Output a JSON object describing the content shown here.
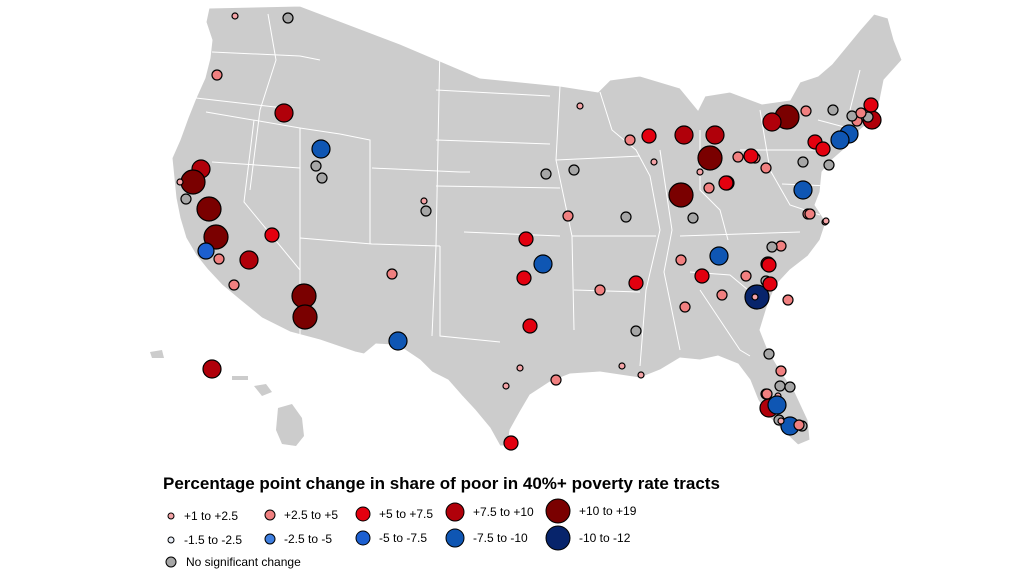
{
  "legend": {
    "title": "Percentage point change in share of poor in 40%+ poverty rate tracts",
    "categories": [
      {
        "key": "inc1",
        "label": "+1 to +2.5",
        "fill": "#f4a3a6"
      },
      {
        "key": "inc2",
        "label": "+2.5 to +5",
        "fill": "#f08080"
      },
      {
        "key": "inc3",
        "label": "+5 to +7.5",
        "fill": "#e3000f"
      },
      {
        "key": "inc4",
        "label": "+7.5 to +10",
        "fill": "#b0000a"
      },
      {
        "key": "inc5",
        "label": "+10 to +19",
        "fill": "#7a0000"
      },
      {
        "key": "dec1",
        "label": "-1.5 to -2.5",
        "fill": "#e8eef8"
      },
      {
        "key": "dec2",
        "label": "-2.5 to -5",
        "fill": "#3f7fe0"
      },
      {
        "key": "dec3",
        "label": "-5 to -7.5",
        "fill": "#1c5fd0"
      },
      {
        "key": "dec4",
        "label": "-7.5 to -10",
        "fill": "#0f56b3"
      },
      {
        "key": "dec5",
        "label": "-10 to -12",
        "fill": "#07246b"
      },
      {
        "key": "nsc",
        "label": "No significant change",
        "fill": "#a6a6a6"
      }
    ]
  },
  "map": {
    "land_color": "#cccccc",
    "border_color": "#ffffff",
    "markers": [
      {
        "cat": "inc1",
        "place": "pt"
      },
      {
        "cat": "nsc"
      },
      {
        "cat": "inc2"
      },
      {
        "cat": "inc4"
      },
      {
        "cat": "dec4"
      },
      {
        "cat": "nsc"
      },
      {
        "cat": "nsc"
      },
      {
        "cat": "inc4"
      },
      {
        "cat": "inc5"
      },
      {
        "cat": "inc1"
      },
      {
        "cat": "nsc"
      },
      {
        "cat": "inc5"
      },
      {
        "cat": "inc5"
      },
      {
        "cat": "dec3"
      },
      {
        "cat": "inc2"
      },
      {
        "cat": "inc4"
      },
      {
        "cat": "inc2"
      },
      {
        "cat": "inc3"
      },
      {
        "cat": "inc5"
      },
      {
        "cat": "inc5"
      },
      {
        "cat": "dec4"
      },
      {
        "cat": "inc1"
      },
      {
        "cat": "nsc"
      },
      {
        "cat": "inc2"
      },
      {
        "cat": "inc1"
      },
      {
        "cat": "nsc"
      },
      {
        "cat": "inc2"
      },
      {
        "cat": "inc3"
      },
      {
        "cat": "inc3"
      },
      {
        "cat": "dec4"
      },
      {
        "cat": "inc3"
      },
      {
        "cat": "inc1"
      },
      {
        "cat": "inc1"
      },
      {
        "cat": "inc2"
      },
      {
        "cat": "inc1"
      },
      {
        "cat": "inc3"
      },
      {
        "cat": "nsc"
      },
      {
        "cat": "inc2"
      },
      {
        "cat": "nsc"
      },
      {
        "cat": "inc2"
      },
      {
        "cat": "inc3"
      },
      {
        "cat": "inc2"
      },
      {
        "cat": "inc1"
      },
      {
        "cat": "nsc"
      },
      {
        "cat": "inc4"
      },
      {
        "cat": "inc3"
      },
      {
        "cat": "inc4"
      },
      {
        "cat": "inc5"
      },
      {
        "cat": "inc5"
      },
      {
        "cat": "inc2"
      },
      {
        "cat": "inc3"
      },
      {
        "cat": "nsc"
      },
      {
        "cat": "inc2"
      },
      {
        "cat": "inc3"
      },
      {
        "cat": "inc1"
      },
      {
        "cat": "inc2"
      },
      {
        "cat": "inc2"
      },
      {
        "cat": "dec4"
      },
      {
        "cat": "inc2"
      },
      {
        "cat": "inc2"
      },
      {
        "cat": "inc3"
      },
      {
        "cat": "nsc"
      },
      {
        "cat": "dec5"
      },
      {
        "cat": "inc1"
      },
      {
        "cat": "inc2"
      },
      {
        "cat": "inc3"
      },
      {
        "cat": "inc3"
      },
      {
        "cat": "inc2"
      },
      {
        "cat": "nsc"
      },
      {
        "cat": "inc1"
      },
      {
        "cat": "inc2"
      },
      {
        "cat": "inc3"
      },
      {
        "cat": "inc2"
      },
      {
        "cat": "inc1"
      },
      {
        "cat": "inc5"
      },
      {
        "cat": "inc4"
      },
      {
        "cat": "inc2"
      },
      {
        "cat": "nsc"
      },
      {
        "cat": "inc3"
      },
      {
        "cat": "inc3"
      },
      {
        "cat": "nsc"
      },
      {
        "cat": "dec4"
      },
      {
        "cat": "inc2"
      },
      {
        "cat": "inc1"
      },
      {
        "cat": "nsc"
      },
      {
        "cat": "nsc"
      },
      {
        "cat": "inc4"
      },
      {
        "cat": "nsc"
      },
      {
        "cat": "nsc"
      },
      {
        "cat": "dec4"
      },
      {
        "cat": "dec4"
      },
      {
        "cat": "inc2"
      },
      {
        "cat": "inc4"
      },
      {
        "cat": "nsc"
      },
      {
        "cat": "nsc"
      },
      {
        "cat": "inc3"
      },
      {
        "cat": "inc1"
      },
      {
        "cat": "inc2"
      },
      {
        "cat": "dec4"
      },
      {
        "cat": "inc2"
      },
      {
        "cat": "inc1"
      },
      {
        "cat": "nsc"
      },
      {
        "cat": "inc2"
      },
      {
        "cat": "nsc"
      },
      {
        "cat": "inc2"
      },
      {
        "cat": "dec4"
      },
      {
        "cat": "inc1"
      },
      {
        "cat": "inc2"
      },
      {
        "cat": "inc4"
      },
      {
        "cat": "inc3"
      },
      {
        "cat": "inc3"
      },
      {
        "cat": "nsc"
      }
    ]
  }
}
